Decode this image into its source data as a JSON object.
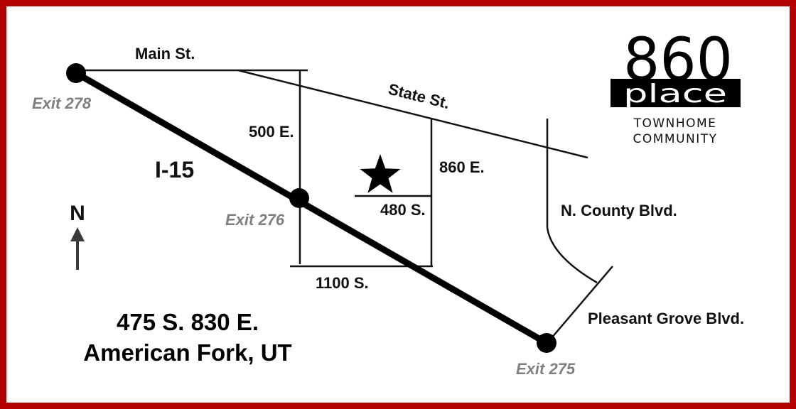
{
  "logo": {
    "number": "860",
    "word": "place",
    "tagline_line1": "TOWNHOME",
    "tagline_line2": "COMMUNITY"
  },
  "streets": {
    "main": "Main St.",
    "state": "State St.",
    "e500": "500 E.",
    "e860": "860 E.",
    "s480": "480 S.",
    "s1100": "1100 S.",
    "county": "N. County Blvd.",
    "pleasant_grove": "Pleasant Grove Blvd.",
    "freeway": "I-15"
  },
  "exits": {
    "exit278": "Exit 278",
    "exit276": "Exit 276",
    "exit275": "Exit 275"
  },
  "compass": {
    "label": "N"
  },
  "address": {
    "line1": "475 S. 830 E.",
    "line2": "American Fork, UT"
  },
  "colors": {
    "border": "#b30000",
    "exit_label": "#7f7f7f",
    "road": "#111111"
  },
  "icons": {
    "location": "star-icon",
    "compass": "north-arrow-icon"
  }
}
